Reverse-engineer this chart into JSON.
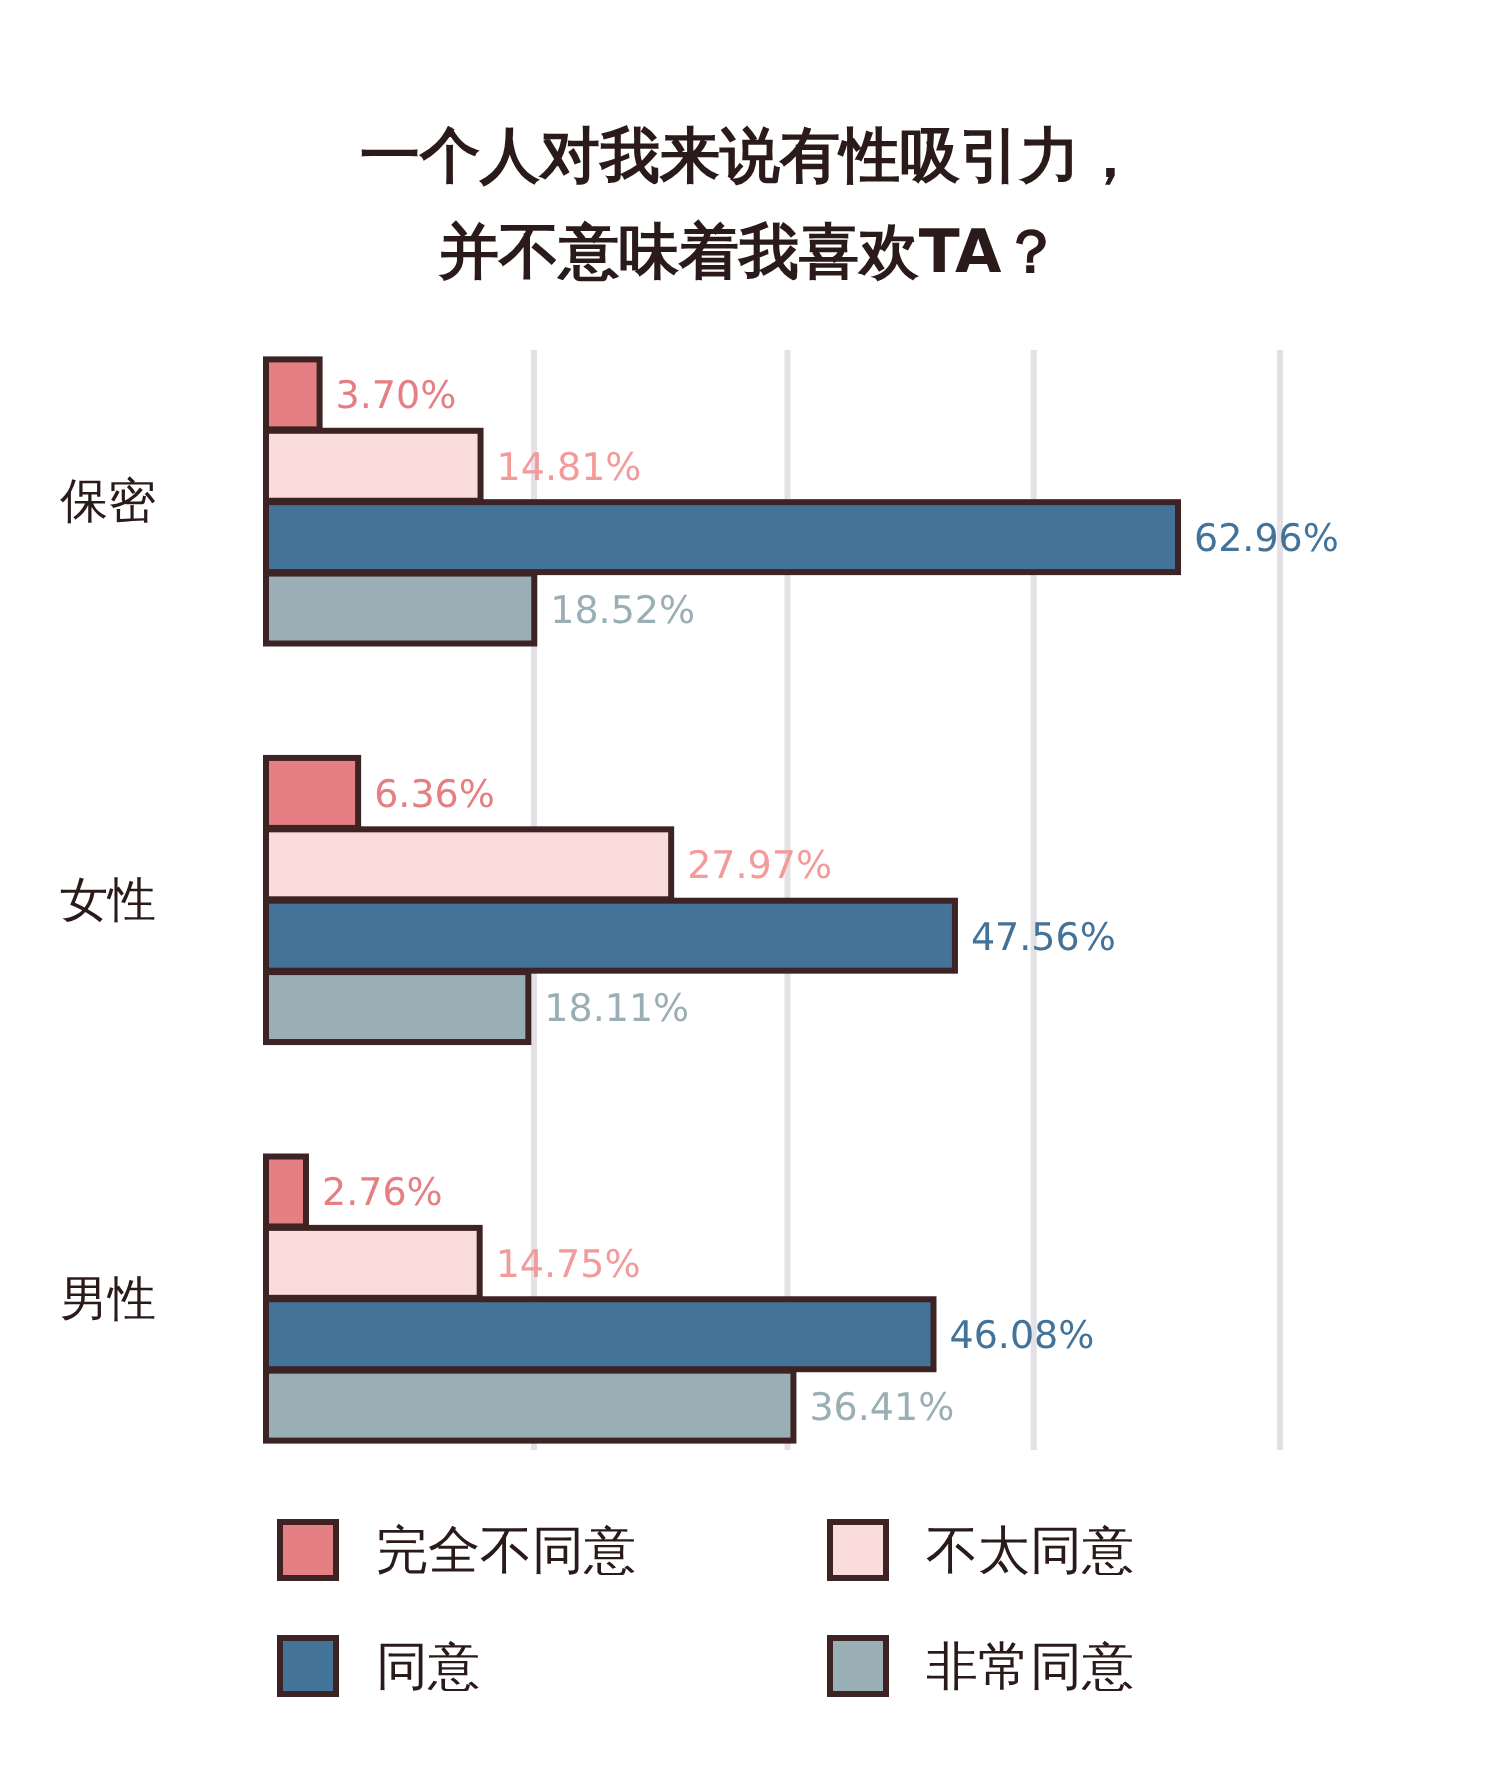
{
  "chart_data": {
    "type": "bar",
    "orientation": "horizontal",
    "title": "一个人对我来说有性吸引力，并不意味着我喜欢TA？",
    "categories": [
      "保密",
      "女性",
      "男性"
    ],
    "series": [
      {
        "name": "完全不同意",
        "color": "#e57f84",
        "values": [
          3.7,
          6.36,
          2.76
        ],
        "value_labels": [
          "3.70%",
          "6.36%",
          "2.76%"
        ]
      },
      {
        "name": "不太同意",
        "color": "#fbdcdc",
        "values": [
          14.81,
          27.97,
          14.75
        ],
        "value_labels": [
          "14.81%",
          "27.97%",
          "14.75%"
        ]
      },
      {
        "name": "同意",
        "color": "#44739a",
        "values": [
          62.96,
          47.56,
          46.08
        ],
        "value_labels": [
          "62.96%",
          "47.56%",
          "46.08%"
        ]
      },
      {
        "name": "非常同意",
        "color": "#9aafb5",
        "values": [
          18.52,
          18.11,
          36.41
        ],
        "value_labels": [
          "18.52%",
          "18.11%",
          "36.41%"
        ]
      }
    ],
    "xlim": [
      0,
      70
    ],
    "xticks": [
      {
        "value": 18.5,
        "label": null
      },
      {
        "value": 36,
        "label": null
      },
      {
        "value": 53,
        "label": null
      },
      {
        "value": 70,
        "label": null
      }
    ],
    "grid": "x",
    "tick_labels": "y",
    "legend": "bottom"
  }
}
